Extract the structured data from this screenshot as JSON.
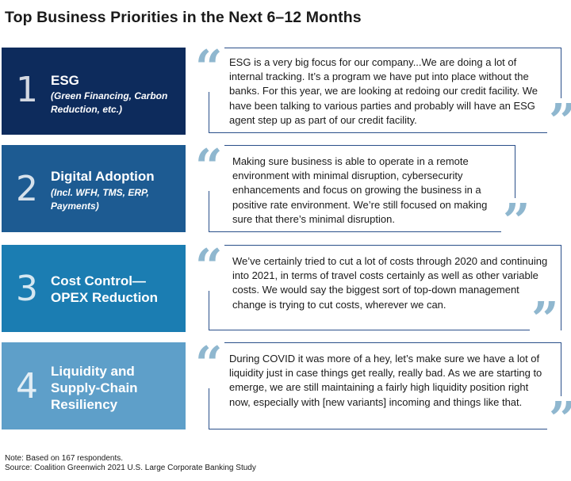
{
  "title": "Top Business Priorities in the Next 6–12 Months",
  "priorities": [
    {
      "number": "1",
      "heading": "ESG",
      "subheading": "(Green Financing, Carbon Reduction, etc.)",
      "color": "#0d2b5c",
      "quote": "ESG is a very big focus for our company...We are doing a lot of internal tracking. It’s a program we have put into place without the banks. For this year, we are looking at redoing our credit facility. We have been talking to various parties and probably will have an ESG agent step up as part of our credit facility."
    },
    {
      "number": "2",
      "heading": "Digital Adoption",
      "subheading": "(Incl. WFH, TMS, ERP, Payments)",
      "color": "#1d5b92",
      "quote": "Making sure business is able to operate in a remote environment with minimal disruption, cybersecurity enhancements and focus on growing the business in a positive rate environment. We’re still focused on making sure that there’s minimal disruption."
    },
    {
      "number": "3",
      "heading": "Cost Control— OPEX Reduction",
      "subheading": "",
      "color": "#1b7db2",
      "quote": "We’ve certainly tried to cut a lot of costs through 2020 and continuing into 2021, in terms of travel costs certainly as well as other variable costs. We would say the biggest sort of top-down management change is trying to cut costs, wherever we can."
    },
    {
      "number": "4",
      "heading": "Liquidity and Supply-Chain Resiliency",
      "subheading": "",
      "color": "#5e9fc9",
      "quote": "During COVID it was more of a hey, let’s make sure we have a lot of liquidity just in case things get really, really bad. As we are starting to emerge, we are still maintaining a fairly high liquidity position right now, especially with [new variants] incoming and things like that."
    }
  ],
  "quote_marks": {
    "open": "“",
    "close": "”",
    "color": "#8fb7cf"
  },
  "notes": {
    "note": "Note: Based on 167 respondents.",
    "source": "Source: Coalition Greenwich 2021 U.S. Large Corporate Banking Study"
  }
}
